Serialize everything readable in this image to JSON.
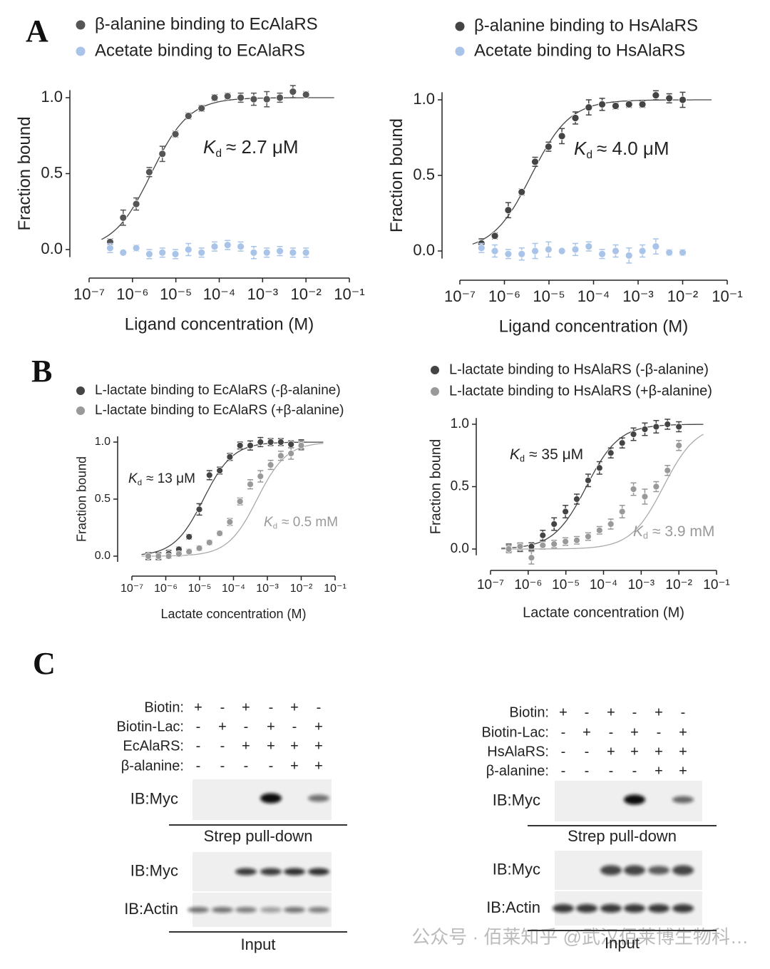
{
  "panels": [
    "A",
    "B",
    "C"
  ],
  "chart_data": [
    {
      "type": "scatter",
      "log_x": true,
      "x_label": "Ligand concentration (M)",
      "y_label": "Fraction bound",
      "x": [
        3.05e-07,
        6.1e-07,
        1.22e-06,
        2.44e-06,
        4.88e-06,
        9.77e-06,
        1.95e-05,
        3.91e-05,
        7.81e-05,
        0.000156,
        0.000313,
        0.000625,
        0.00125,
        0.0025,
        0.005,
        0.01
      ],
      "xlim": [
        1e-07,
        0.1
      ],
      "xticks": [
        {
          "value": 1e-07,
          "label": "10⁻⁷"
        },
        {
          "value": 1e-06,
          "label": "10⁻⁶"
        },
        {
          "value": 1e-05,
          "label": "10⁻⁵"
        },
        {
          "value": 0.0001,
          "label": "10⁻⁴"
        },
        {
          "value": 0.001,
          "label": "10⁻³"
        },
        {
          "value": 0.01,
          "label": "10⁻²"
        },
        {
          "value": 0.1,
          "label": "10⁻¹"
        }
      ],
      "ylim": [
        -0.05,
        1.05
      ],
      "yticks": [
        {
          "value": 0,
          "label": "0.0"
        },
        {
          "value": 0.5,
          "label": "0.5"
        },
        {
          "value": 1,
          "label": "1.0"
        }
      ],
      "series": [
        {
          "name": "β-alanine binding to EcAlaRS",
          "color": "#555555",
          "values": [
            0.05,
            0.21,
            0.3,
            0.51,
            0.63,
            0.76,
            0.88,
            0.93,
            1.0,
            1.01,
            1.0,
            0.99,
            0.99,
            1.0,
            1.04,
            1.02
          ],
          "errors": [
            0.02,
            0.05,
            0.04,
            0.03,
            0.05,
            0.02,
            0.02,
            0.02,
            0.02,
            0.02,
            0.03,
            0.04,
            0.05,
            0.03,
            0.04,
            0.02
          ],
          "fit_kd": 2.7e-06,
          "kd_label": {
            "symbol": "K",
            "subscript": "d",
            "text": "≈ 2.7 μM"
          }
        },
        {
          "name": "Acetate binding to EcAlaRS",
          "color": "#a9c4e8",
          "values": [
            0.01,
            -0.02,
            0.01,
            -0.03,
            -0.02,
            -0.03,
            0.0,
            -0.02,
            0.02,
            0.03,
            0.02,
            -0.02,
            -0.02,
            -0.01,
            -0.02,
            -0.02
          ],
          "errors": [
            0.03,
            0.01,
            0.02,
            0.03,
            0.03,
            0.03,
            0.04,
            0.03,
            0.03,
            0.03,
            0.03,
            0.04,
            0.03,
            0.03,
            0.03,
            0.03
          ]
        }
      ]
    },
    {
      "type": "scatter",
      "log_x": true,
      "x_label": "Ligand concentration (M)",
      "y_label": "Fraction bound",
      "x": [
        3.05e-07,
        6.1e-07,
        1.22e-06,
        2.44e-06,
        4.88e-06,
        9.77e-06,
        1.95e-05,
        3.91e-05,
        7.81e-05,
        0.000156,
        0.000313,
        0.000625,
        0.00125,
        0.0025,
        0.005,
        0.01
      ],
      "xlim": [
        1e-07,
        0.1
      ],
      "xticks": [
        {
          "value": 1e-07,
          "label": "10⁻⁷"
        },
        {
          "value": 1e-06,
          "label": "10⁻⁶"
        },
        {
          "value": 1e-05,
          "label": "10⁻⁵"
        },
        {
          "value": 0.0001,
          "label": "10⁻⁴"
        },
        {
          "value": 0.001,
          "label": "10⁻³"
        },
        {
          "value": 0.01,
          "label": "10⁻²"
        },
        {
          "value": 0.1,
          "label": "10⁻¹"
        }
      ],
      "ylim": [
        -0.05,
        1.05
      ],
      "yticks": [
        {
          "value": 0,
          "label": "0.0"
        },
        {
          "value": 0.5,
          "label": "0.5"
        },
        {
          "value": 1,
          "label": "1.0"
        }
      ],
      "series": [
        {
          "name": "β-alanine binding to HsAlaRS",
          "color": "#444444",
          "values": [
            0.05,
            0.1,
            0.27,
            0.39,
            0.59,
            0.69,
            0.76,
            0.88,
            0.95,
            0.97,
            0.96,
            0.97,
            0.97,
            1.03,
            1.01,
            1.0
          ],
          "errors": [
            0.03,
            0.02,
            0.05,
            0.02,
            0.03,
            0.03,
            0.05,
            0.04,
            0.05,
            0.04,
            0.02,
            0.02,
            0.02,
            0.03,
            0.03,
            0.05
          ],
          "fit_kd": 4e-06,
          "kd_label": {
            "symbol": "K",
            "subscript": "d",
            "text": "≈ 4.0 μM"
          }
        },
        {
          "name": "Acetate binding to HsAlaRS",
          "color": "#a9c4e8",
          "values": [
            0.02,
            0.0,
            -0.02,
            -0.02,
            0.0,
            0.01,
            0.0,
            0.01,
            0.03,
            -0.02,
            0.0,
            -0.03,
            0.0,
            0.03,
            -0.01,
            -0.01
          ],
          "errors": [
            0.03,
            0.04,
            0.03,
            0.04,
            0.05,
            0.05,
            0.01,
            0.04,
            0.03,
            0.03,
            0.04,
            0.05,
            0.04,
            0.05,
            0.02,
            0.02
          ]
        }
      ]
    },
    {
      "type": "scatter",
      "log_x": true,
      "x_label": "Lactate concentration (M)",
      "y_label": "Fraction bound",
      "x": [
        3.05e-07,
        6.1e-07,
        1.22e-06,
        2.44e-06,
        4.88e-06,
        9.77e-06,
        1.95e-05,
        3.91e-05,
        7.81e-05,
        0.000156,
        0.000313,
        0.000625,
        0.00125,
        0.0025,
        0.005,
        0.01
      ],
      "xlim": [
        1e-07,
        0.1
      ],
      "xticks": [
        {
          "value": 1e-07,
          "label": "10⁻⁷"
        },
        {
          "value": 1e-06,
          "label": "10⁻⁶"
        },
        {
          "value": 1e-05,
          "label": "10⁻⁵"
        },
        {
          "value": 0.0001,
          "label": "10⁻⁴"
        },
        {
          "value": 0.001,
          "label": "10⁻³"
        },
        {
          "value": 0.01,
          "label": "10⁻²"
        },
        {
          "value": 0.1,
          "label": "10⁻¹"
        }
      ],
      "ylim": [
        -0.05,
        1.05
      ],
      "yticks": [
        {
          "value": 0,
          "label": "0.0"
        },
        {
          "value": 0.5,
          "label": "0.5"
        },
        {
          "value": 1,
          "label": "1.0"
        }
      ],
      "series": [
        {
          "name": "L-lactate binding to EcAlaRS (-β-alanine)",
          "color": "#444444",
          "values": [
            0.0,
            0.0,
            0.02,
            0.06,
            0.17,
            0.41,
            0.71,
            0.75,
            0.87,
            0.97,
            0.97,
            1.0,
            1.0,
            1.0,
            0.98,
            0.98
          ],
          "errors": [
            0.03,
            0.03,
            0.03,
            0.02,
            0.02,
            0.05,
            0.04,
            0.03,
            0.03,
            0.03,
            0.04,
            0.04,
            0.03,
            0.03,
            0.03,
            0.04
          ],
          "fit_kd": 1.3e-05,
          "kd_label": {
            "symbol": "K",
            "subscript": "d",
            "text": "≈ 13 μM"
          }
        },
        {
          "name": "L-lactate binding to EcAlaRS (+β-alanine)",
          "color": "#999999",
          "values": [
            0.0,
            0.0,
            0.0,
            0.02,
            0.04,
            0.07,
            0.12,
            0.2,
            0.3,
            0.48,
            0.63,
            0.7,
            0.8,
            0.88,
            0.9,
            0.97
          ],
          "errors": [
            0.02,
            0.02,
            0.02,
            0.02,
            0.02,
            0.02,
            0.02,
            0.02,
            0.03,
            0.03,
            0.04,
            0.05,
            0.04,
            0.04,
            0.05,
            0.04
          ],
          "fit_kd": 0.0005,
          "kd_label": {
            "symbol": "K",
            "subscript": "d",
            "text": "≈ 0.5 mM"
          }
        }
      ]
    },
    {
      "type": "scatter",
      "log_x": true,
      "x_label": "Lactate concentration (M)",
      "y_label": "Fraction bound",
      "x": [
        3.05e-07,
        6.1e-07,
        1.22e-06,
        2.44e-06,
        4.88e-06,
        9.77e-06,
        1.95e-05,
        3.91e-05,
        7.81e-05,
        0.000156,
        0.000313,
        0.000625,
        0.00125,
        0.0025,
        0.005,
        0.01
      ],
      "xlim": [
        1e-07,
        0.1
      ],
      "xticks": [
        {
          "value": 1e-07,
          "label": "10⁻⁷"
        },
        {
          "value": 1e-06,
          "label": "10⁻⁶"
        },
        {
          "value": 1e-05,
          "label": "10⁻⁵"
        },
        {
          "value": 0.0001,
          "label": "10⁻⁴"
        },
        {
          "value": 0.001,
          "label": "10⁻³"
        },
        {
          "value": 0.01,
          "label": "10⁻²"
        },
        {
          "value": 0.1,
          "label": "10⁻¹"
        }
      ],
      "ylim": [
        -0.05,
        1.05
      ],
      "yticks": [
        {
          "value": 0,
          "label": "0.0"
        },
        {
          "value": 0.5,
          "label": "0.5"
        },
        {
          "value": 1,
          "label": "1.0"
        }
      ],
      "series": [
        {
          "name": "L-lactate binding to HsAlaRS (-β-alanine)",
          "color": "#444444",
          "values": [
            0.01,
            0.01,
            0.02,
            0.11,
            0.2,
            0.3,
            0.4,
            0.55,
            0.65,
            0.77,
            0.85,
            0.92,
            0.96,
            0.98,
            1.0,
            0.98
          ],
          "errors": [
            0.03,
            0.03,
            0.03,
            0.04,
            0.05,
            0.05,
            0.04,
            0.05,
            0.05,
            0.04,
            0.04,
            0.05,
            0.05,
            0.05,
            0.04,
            0.04
          ],
          "fit_kd": 3.5e-05,
          "kd_label": {
            "symbol": "K",
            "subscript": "d",
            "text": "≈ 35 μM"
          }
        },
        {
          "name": "L-lactate binding to HsAlaRS (+β-alanine)",
          "color": "#999999",
          "values": [
            0.0,
            0.02,
            -0.07,
            0.03,
            0.04,
            0.06,
            0.07,
            0.1,
            0.15,
            0.2,
            0.3,
            0.48,
            0.42,
            0.5,
            0.63,
            0.83
          ],
          "errors": [
            0.03,
            0.03,
            0.05,
            0.03,
            0.03,
            0.03,
            0.03,
            0.03,
            0.03,
            0.04,
            0.05,
            0.05,
            0.06,
            0.04,
            0.04,
            0.04
          ],
          "fit_kd": 0.0039,
          "kd_label": {
            "symbol": "K",
            "subscript": "d",
            "text": "≈ 3.9 mM"
          }
        }
      ]
    }
  ],
  "blots": [
    {
      "rows": [
        {
          "label": "Biotin:",
          "signs": [
            "+",
            "-",
            "+",
            "-",
            "+",
            "-"
          ]
        },
        {
          "label": "Biotin-Lac:",
          "signs": [
            "-",
            "+",
            "-",
            "+",
            "-",
            "+"
          ]
        },
        {
          "label": "EcAlaRS:",
          "signs": [
            "-",
            "-",
            "+",
            "+",
            "+",
            "+"
          ]
        },
        {
          "label": "β-alanine:",
          "signs": [
            "-",
            "-",
            "-",
            "-",
            "+",
            "+"
          ]
        }
      ],
      "blot_labels": [
        "IB:Myc",
        "IB:Myc",
        "IB:Actin"
      ],
      "captions": [
        "Strep pull-down",
        "Input"
      ]
    },
    {
      "rows": [
        {
          "label": "Biotin:",
          "signs": [
            "+",
            "-",
            "+",
            "-",
            "+",
            "-"
          ]
        },
        {
          "label": "Biotin-Lac:",
          "signs": [
            "-",
            "+",
            "-",
            "+",
            "-",
            "+"
          ]
        },
        {
          "label": "HsAlaRS:",
          "signs": [
            "-",
            "-",
            "+",
            "+",
            "+",
            "+"
          ]
        },
        {
          "label": "β-alanine:",
          "signs": [
            "-",
            "-",
            "-",
            "-",
            "+",
            "+"
          ]
        }
      ],
      "blot_labels": [
        "IB:Myc",
        "IB:Myc",
        "IB:Actin"
      ],
      "captions": [
        "Strep pull-down",
        "Input"
      ]
    }
  ],
  "watermark": "公众号 · 佰莱知乎 @武汉佰莱博生物科…"
}
